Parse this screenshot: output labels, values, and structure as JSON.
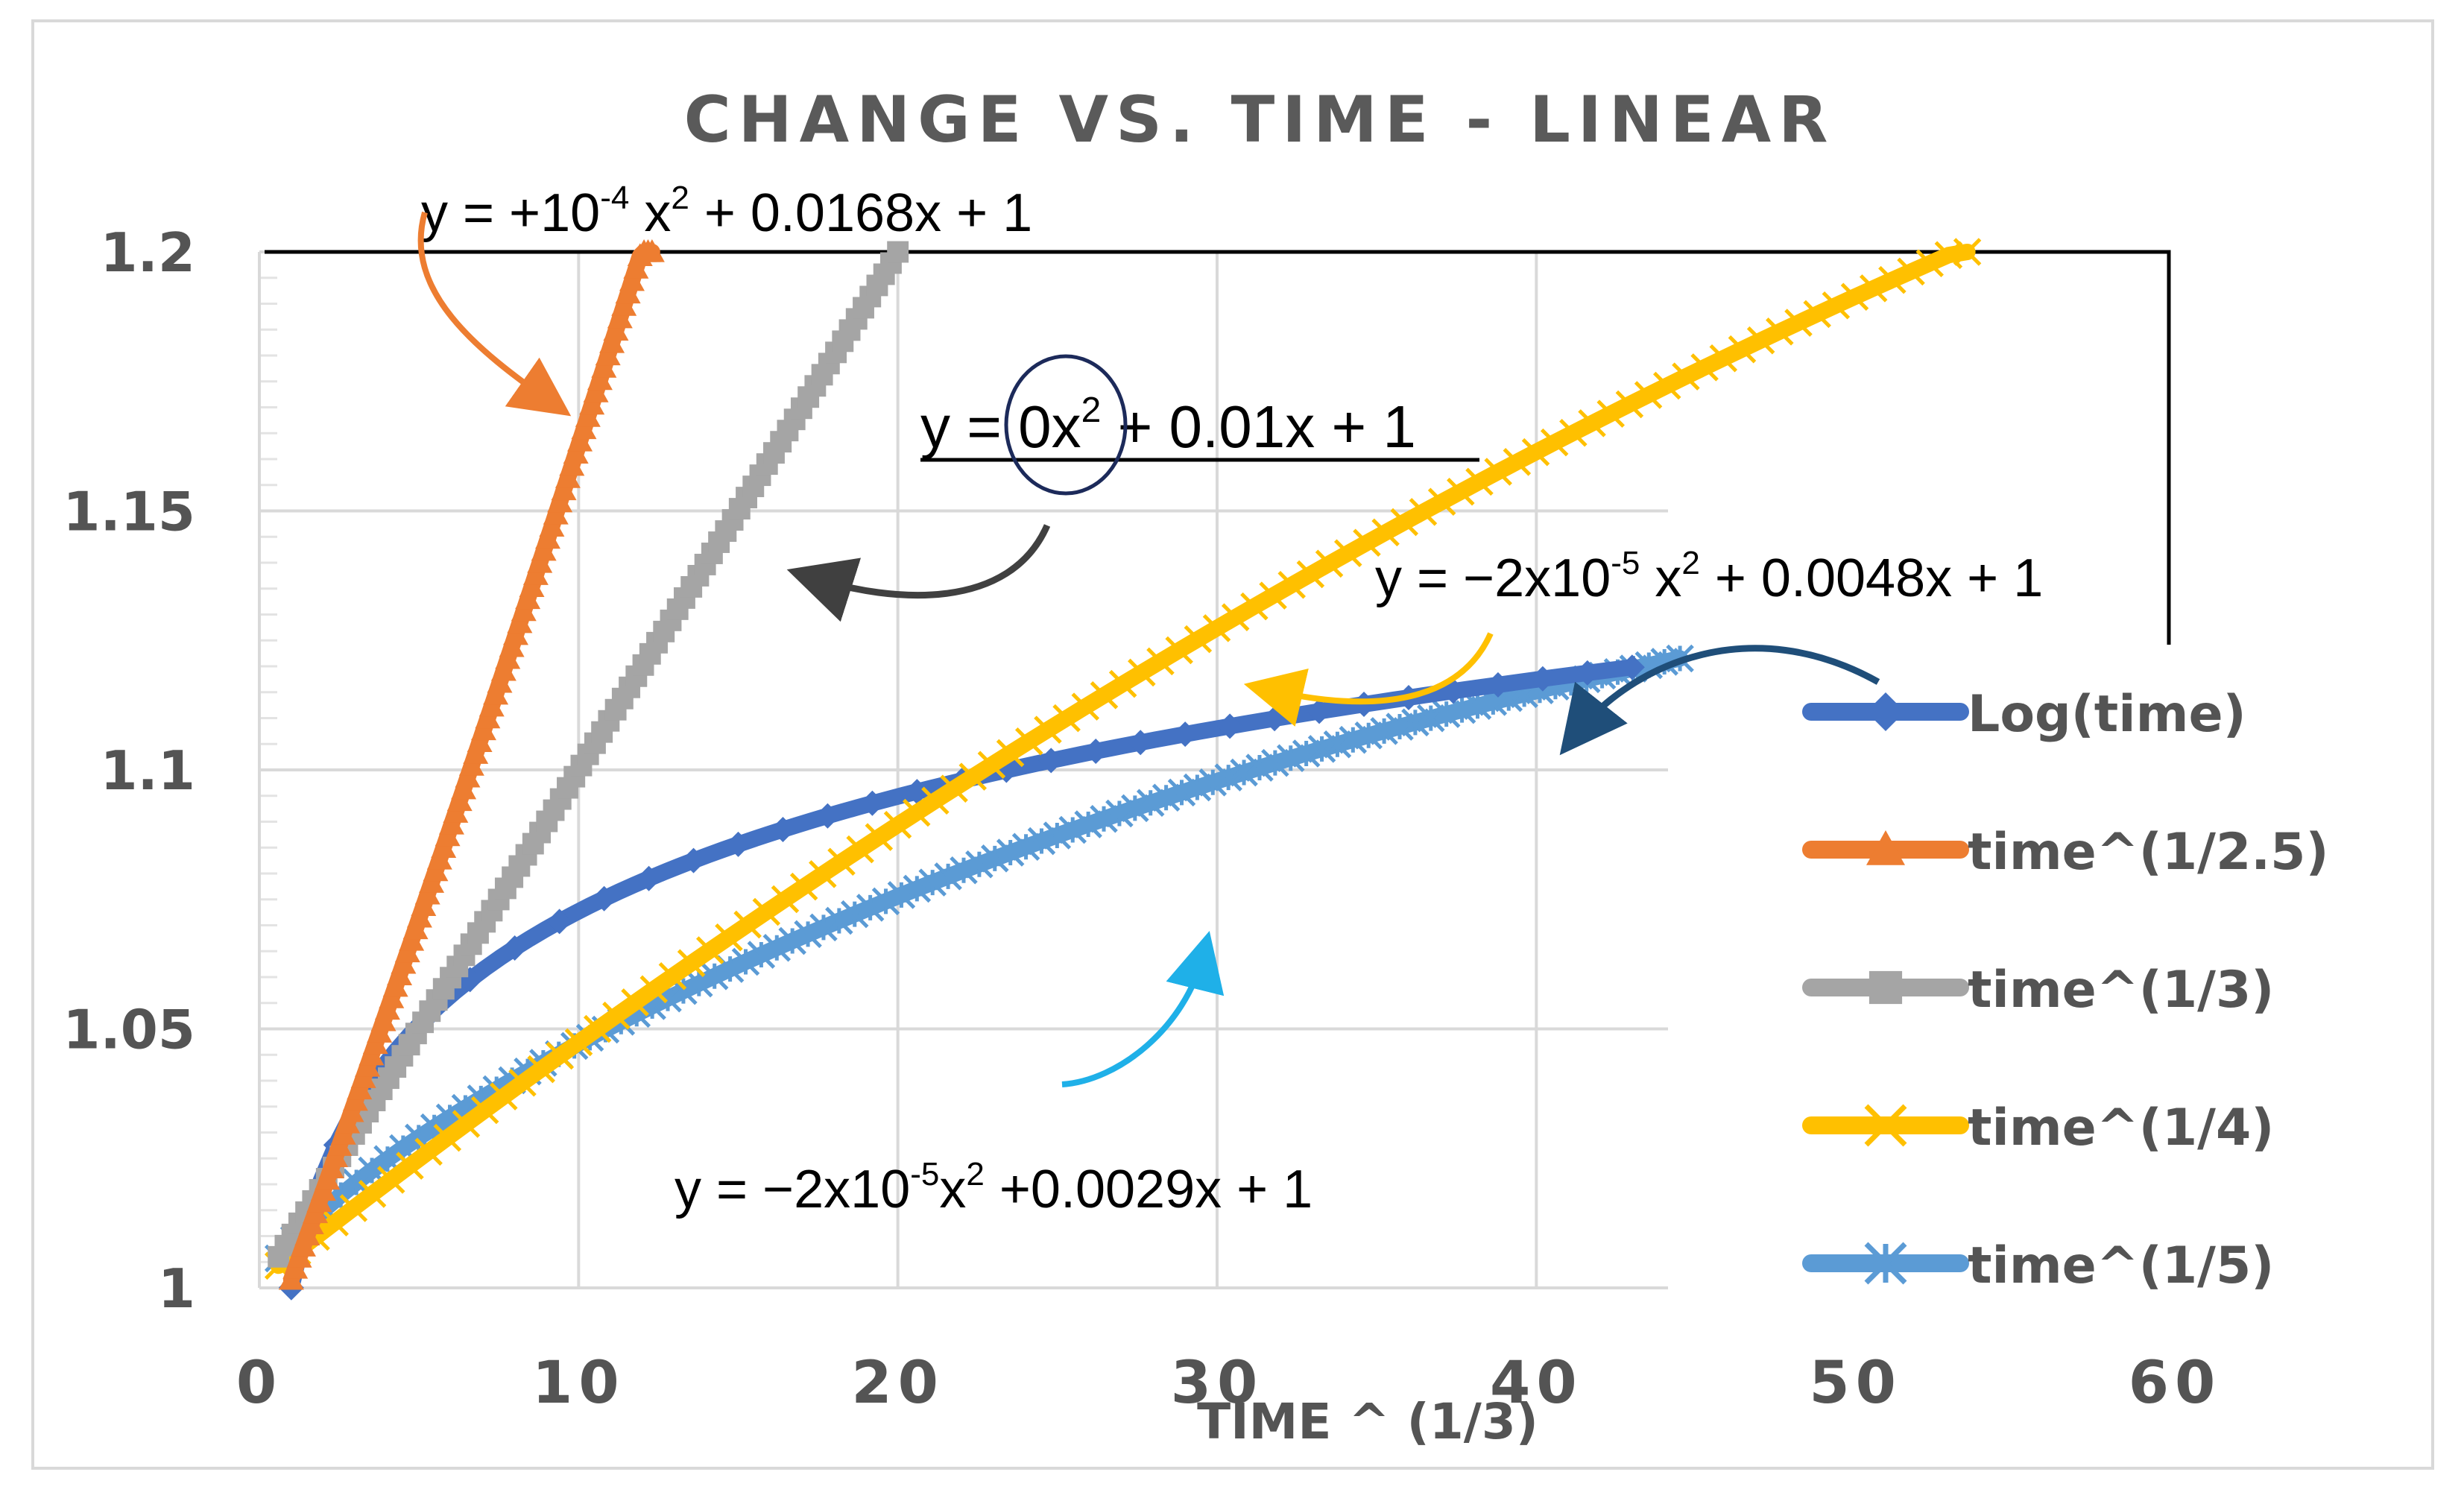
{
  "chart_data": {
    "type": "line",
    "title": "CHANGE VS. TIME - LINEAR",
    "xlabel": "TIME ^ (1/3)",
    "ylabel": "",
    "xlim": [
      0,
      60
    ],
    "ylim": [
      1,
      1.2
    ],
    "x_ticks": [
      "0",
      "10",
      "20",
      "30",
      "40",
      "50",
      "60"
    ],
    "y_ticks": [
      "1",
      "1.05",
      "1.1",
      "1.15",
      "1.2"
    ],
    "grid": true,
    "legend_position": "right",
    "series": [
      {
        "name": "Log(time)",
        "color": "#4472c4",
        "marker": "diamond",
        "xmax": 43
      },
      {
        "name": "time^(1/2.5)",
        "color": "#ed7d31",
        "marker": "triangle",
        "xmax": 12.3
      },
      {
        "name": "time^(1/3)",
        "color": "#a5a5a5",
        "marker": "square",
        "xmax": 20
      },
      {
        "name": "time^(1/4)",
        "color": "#ffc000",
        "marker": "x",
        "xmax": 53.5
      },
      {
        "name": "time^(1/5)",
        "color": "#5b9bd5",
        "marker": "star",
        "xmax": 44.5
      }
    ],
    "annotations": [
      {
        "id": "orange",
        "base": "y = +10",
        "sup1": "-4",
        "mid": " x",
        "sup2": "2",
        "rest": " + 0.0168x + 1",
        "color": "#ed7d31",
        "points_to": "time^(1/2.5)"
      },
      {
        "id": "gray",
        "base": "y = 0x",
        "sup1": "",
        "mid": "",
        "sup2": "2",
        "rest": " + 0.01x + 1",
        "color": "#404040",
        "points_to": "time^(1/3)"
      },
      {
        "id": "yellow",
        "base": "y = −2x10",
        "sup1": "-5",
        "mid": " x",
        "sup2": "2",
        "rest": " + 0.0048x + 1",
        "color": "#ffc000",
        "points_to": "time^(1/4)"
      },
      {
        "id": "lightblue",
        "base": "y = −2x10",
        "sup1": "-5",
        "mid": "x",
        "sup2": "2",
        "rest": " +0.0029x + 1",
        "color": "#1fb0e8",
        "points_to": "time^(1/5)"
      }
    ],
    "legend_arrow_color": "#1f4e79"
  }
}
